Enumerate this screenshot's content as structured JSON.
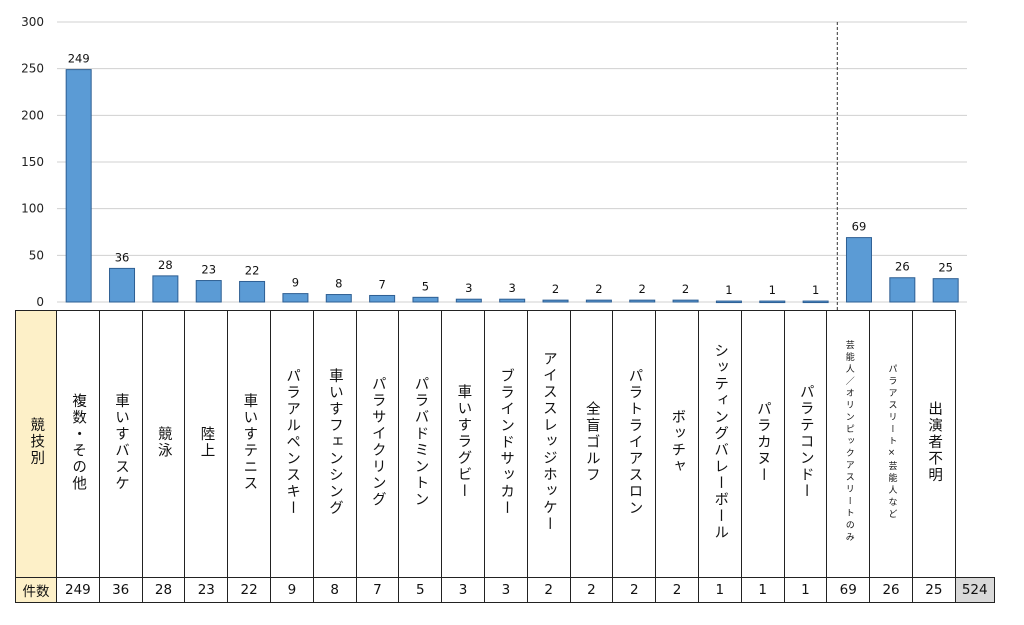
{
  "chart_data": {
    "type": "bar",
    "categories": [
      "複数・その他",
      "車いすバスケ",
      "競泳",
      "陸上",
      "車いすテニス",
      "パラアルペンスキー",
      "車いすフェンシング",
      "パラサイクリング",
      "パラバドミントン",
      "車いすラグビー",
      "ブラインドサッカー",
      "アイススレッジホッケー",
      "全盲ゴルフ",
      "パラトライアスロン",
      "ボッチャ",
      "シッティングバレーボール",
      "パラカヌー",
      "パラテコンドー",
      "芸能人／オリンピックアスリートのみ",
      "パラアスリート×芸能人など",
      "出演者不明"
    ],
    "values": [
      249,
      36,
      28,
      23,
      22,
      9,
      8,
      7,
      5,
      3,
      3,
      2,
      2,
      2,
      2,
      1,
      1,
      1,
      69,
      26,
      25
    ],
    "value_labels": [
      "249",
      "36",
      "28",
      "23",
      "22",
      "9",
      "8",
      "7",
      "5",
      "3",
      "3",
      "2",
      "2",
      "2",
      "2",
      "1",
      "1",
      "1",
      "69",
      "26",
      "25"
    ],
    "ylim": [
      0,
      300
    ],
    "yticks": [
      "0",
      "50",
      "100",
      "150",
      "200",
      "250",
      "300"
    ],
    "grid": true,
    "bar_color": "#5b9bd5",
    "separator_after_index": 17
  },
  "table": {
    "row_header_category": "競技別",
    "row_header_count": "件数",
    "total": "524"
  }
}
